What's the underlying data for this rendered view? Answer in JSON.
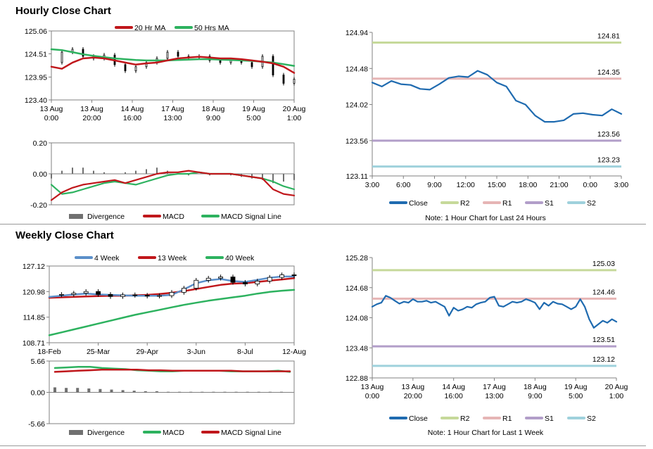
{
  "sections": {
    "hourly_title": "Hourly Close Chart",
    "weekly_title": "Weekly Close Chart"
  },
  "colors": {
    "close": "#1f6bb0",
    "ma20": "#c0171b",
    "ma50": "#2db25f",
    "r2": "#c6d99a",
    "r1": "#e6b5b5",
    "s1": "#b29ec9",
    "s2": "#9fd1dc",
    "divergence": "#707070",
    "week4": "#5b8fc9",
    "week13": "#c0171b",
    "week40": "#2db25f"
  },
  "chart_data": [
    {
      "id": "hourly_price",
      "type": "line",
      "legend": [
        "20 Hr MA",
        "50 Hrs MA"
      ],
      "yticks": [
        "125.06",
        "124.51",
        "123.95",
        "123.40"
      ],
      "ylim": [
        123.4,
        125.06
      ],
      "xticks": [
        [
          "13 Aug",
          "0:00"
        ],
        [
          "13 Aug",
          "20:00"
        ],
        [
          "14 Aug",
          "16:00"
        ],
        [
          "17 Aug",
          "13:00"
        ],
        [
          "18 Aug",
          "9:00"
        ],
        [
          "19 Aug",
          "5:00"
        ],
        [
          "20 Aug",
          "1:00"
        ]
      ],
      "series": [
        {
          "name": "20 Hr MA",
          "values": [
            124.2,
            124.15,
            124.3,
            124.4,
            124.42,
            124.4,
            124.35,
            124.3,
            124.25,
            124.28,
            124.3,
            124.35,
            124.4,
            124.42,
            124.44,
            124.42,
            124.4,
            124.4,
            124.38,
            124.35,
            124.32,
            124.28,
            124.2,
            124.05
          ]
        },
        {
          "name": "50 Hrs MA",
          "values": [
            124.62,
            124.6,
            124.55,
            124.5,
            124.46,
            124.43,
            124.4,
            124.38,
            124.36,
            124.35,
            124.35,
            124.35,
            124.36,
            124.37,
            124.38,
            124.38,
            124.37,
            124.36,
            124.35,
            124.34,
            124.32,
            124.3,
            124.26,
            124.22
          ]
        },
        {
          "name": "Close",
          "values": [
            124.3,
            124.55,
            124.62,
            124.45,
            124.4,
            124.48,
            124.25,
            124.1,
            124.2,
            124.3,
            124.4,
            124.55,
            124.45,
            124.42,
            124.45,
            124.35,
            124.3,
            124.35,
            124.3,
            124.2,
            124.45,
            124.0,
            123.8,
            123.9
          ]
        }
      ]
    },
    {
      "id": "hourly_macd",
      "type": "line",
      "yticks": [
        "0.20",
        "0.00",
        "-0.20"
      ],
      "ylim": [
        -0.2,
        0.2
      ],
      "legend": [
        "Divergence",
        "MACD",
        "MACD Signal Line"
      ],
      "series": [
        {
          "name": "Divergence",
          "values": [
            -0.03,
            0.02,
            0.04,
            0.04,
            0.02,
            0.01,
            0.0,
            0.01,
            0.02,
            0.03,
            0.04,
            0.02,
            0.0,
            -0.01,
            0.0,
            -0.01,
            0.0,
            -0.01,
            -0.02,
            -0.03,
            -0.04,
            -0.06,
            -0.05,
            -0.04
          ]
        },
        {
          "name": "MACD",
          "values": [
            -0.17,
            -0.12,
            -0.09,
            -0.07,
            -0.06,
            -0.05,
            -0.04,
            -0.06,
            -0.04,
            -0.02,
            0.0,
            0.01,
            0.01,
            0.02,
            0.01,
            0.0,
            0.0,
            0.0,
            -0.01,
            -0.02,
            -0.03,
            -0.1,
            -0.13,
            -0.14
          ]
        },
        {
          "name": "MACD Signal Line",
          "values": [
            -0.07,
            -0.13,
            -0.12,
            -0.1,
            -0.08,
            -0.06,
            -0.05,
            -0.06,
            -0.07,
            -0.05,
            -0.03,
            -0.01,
            0.0,
            0.0,
            0.01,
            0.0,
            0.0,
            0.0,
            -0.01,
            -0.02,
            -0.03,
            -0.05,
            -0.08,
            -0.1
          ]
        }
      ]
    },
    {
      "id": "hourly_levels",
      "type": "line",
      "ylim": [
        123.11,
        124.94
      ],
      "yticks": [
        "124.94",
        "124.48",
        "124.02",
        "123.56",
        "123.11"
      ],
      "xticks": [
        "3:00",
        "6:00",
        "9:00",
        "12:00",
        "15:00",
        "18:00",
        "21:00",
        "0:00",
        "3:00"
      ],
      "legend": [
        "Close",
        "R2",
        "R1",
        "S1",
        "S2"
      ],
      "note": "Note: 1 Hour Chart for Last 24 Hours",
      "levels": {
        "R2": 124.81,
        "R1": 124.35,
        "S1": 123.56,
        "S2": 123.23
      },
      "level_labels": [
        "124.81",
        "124.35",
        "123.56",
        "123.23"
      ],
      "series": [
        {
          "name": "Close",
          "values": [
            124.3,
            124.25,
            124.32,
            124.28,
            124.27,
            124.22,
            124.21,
            124.28,
            124.36,
            124.38,
            124.37,
            124.45,
            124.4,
            124.3,
            124.25,
            124.07,
            124.02,
            123.88,
            123.8,
            123.8,
            123.82,
            123.9,
            123.91,
            123.89,
            123.88,
            123.96,
            123.9
          ]
        }
      ]
    },
    {
      "id": "weekly_price",
      "type": "line",
      "ylim": [
        108.71,
        127.12
      ],
      "yticks": [
        "127.12",
        "120.98",
        "114.85",
        "108.71"
      ],
      "xticks": [
        "18-Feb",
        "25-Mar",
        "29-Apr",
        "3-Jun",
        "8-Jul",
        "12-Aug"
      ],
      "legend": [
        "4 Week",
        "13 Week",
        "40 Week"
      ],
      "series": [
        {
          "name": "4 Week",
          "values": [
            119.7,
            120.0,
            120.3,
            120.5,
            120.3,
            120.2,
            120.1,
            120.0,
            120.0,
            120.0,
            120.2,
            121.5,
            123.0,
            123.7,
            124.0,
            123.5,
            123.3,
            123.8,
            124.3,
            124.6,
            124.6
          ]
        },
        {
          "name": "13 Week",
          "values": [
            119.5,
            119.6,
            119.7,
            119.8,
            119.9,
            120.0,
            120.0,
            120.1,
            120.2,
            120.4,
            120.7,
            121.1,
            121.6,
            122.1,
            122.6,
            122.9,
            123.0,
            123.3,
            123.6,
            123.9,
            124.2
          ]
        },
        {
          "name": "40 Week",
          "values": [
            110.5,
            111.2,
            111.9,
            112.6,
            113.3,
            114.0,
            114.7,
            115.4,
            116.0,
            116.6,
            117.2,
            117.8,
            118.3,
            118.8,
            119.2,
            119.6,
            120.0,
            120.5,
            120.9,
            121.2,
            121.4
          ]
        },
        {
          "name": "Close",
          "values": [
            120.2,
            120.3,
            120.6,
            121.0,
            120.3,
            119.8,
            120.2,
            120.1,
            119.9,
            120.0,
            120.8,
            121.8,
            123.7,
            124.2,
            124.5,
            123.2,
            122.8,
            123.5,
            124.4,
            125.0,
            124.8
          ]
        }
      ]
    },
    {
      "id": "weekly_macd",
      "type": "line",
      "ylim": [
        -5.66,
        5.66
      ],
      "yticks": [
        "5.66",
        "0.00",
        "-5.66"
      ],
      "legend": [
        "Divergence",
        "MACD",
        "MACD Signal Line"
      ],
      "series": [
        {
          "name": "Divergence",
          "values": [
            0.9,
            0.8,
            0.8,
            0.7,
            0.6,
            0.5,
            0.4,
            0.3,
            0.2,
            0.2,
            0.1,
            0.1,
            0.1,
            0.1,
            0.1,
            0.1,
            0.1,
            0.1,
            0.1,
            0.1,
            0.1
          ]
        },
        {
          "name": "MACD",
          "values": [
            4.4,
            4.5,
            4.6,
            4.6,
            4.4,
            4.3,
            4.2,
            4.0,
            3.9,
            3.8,
            3.8,
            3.9,
            3.9,
            3.9,
            3.9,
            3.8,
            3.8,
            3.8,
            3.8,
            3.9,
            3.7
          ]
        },
        {
          "name": "MACD Signal Line",
          "values": [
            3.7,
            3.8,
            3.9,
            4.0,
            4.1,
            4.1,
            4.1,
            4.1,
            4.0,
            4.0,
            3.9,
            3.9,
            3.9,
            3.9,
            3.9,
            3.9,
            3.8,
            3.8,
            3.8,
            3.8,
            3.8
          ]
        }
      ]
    },
    {
      "id": "weekly_levels",
      "type": "line",
      "ylim": [
        122.88,
        125.28
      ],
      "yticks": [
        "125.28",
        "124.68",
        "124.08",
        "123.48",
        "122.88"
      ],
      "xticks": [
        [
          "13 Aug",
          "0:00"
        ],
        [
          "13 Aug",
          "20:00"
        ],
        [
          "14 Aug",
          "16:00"
        ],
        [
          "17 Aug",
          "13:00"
        ],
        [
          "18 Aug",
          "9:00"
        ],
        [
          "19 Aug",
          "5:00"
        ],
        [
          "20 Aug",
          "1:00"
        ]
      ],
      "legend": [
        "Close",
        "R2",
        "R1",
        "S1",
        "S2"
      ],
      "note": "Note: 1 Hour Chart for Last 1 Week",
      "levels": {
        "R2": 125.03,
        "R1": 124.46,
        "S1": 123.51,
        "S2": 123.12
      },
      "level_labels": [
        "125.03",
        "124.46",
        "123.51",
        "123.12"
      ],
      "series": [
        {
          "name": "Close",
          "values": [
            124.3,
            124.35,
            124.38,
            124.52,
            124.48,
            124.42,
            124.36,
            124.4,
            124.38,
            124.45,
            124.4,
            124.4,
            124.42,
            124.38,
            124.4,
            124.35,
            124.3,
            124.12,
            124.28,
            124.22,
            124.25,
            124.3,
            124.28,
            124.35,
            124.38,
            124.4,
            124.48,
            124.5,
            124.32,
            124.3,
            124.35,
            124.4,
            124.38,
            124.4,
            124.45,
            124.42,
            124.38,
            124.25,
            124.38,
            124.32,
            124.4,
            124.36,
            124.35,
            124.3,
            124.25,
            124.3,
            124.45,
            124.3,
            124.05,
            123.88,
            123.95,
            124.02,
            123.98,
            124.05,
            124.0
          ]
        }
      ]
    }
  ]
}
